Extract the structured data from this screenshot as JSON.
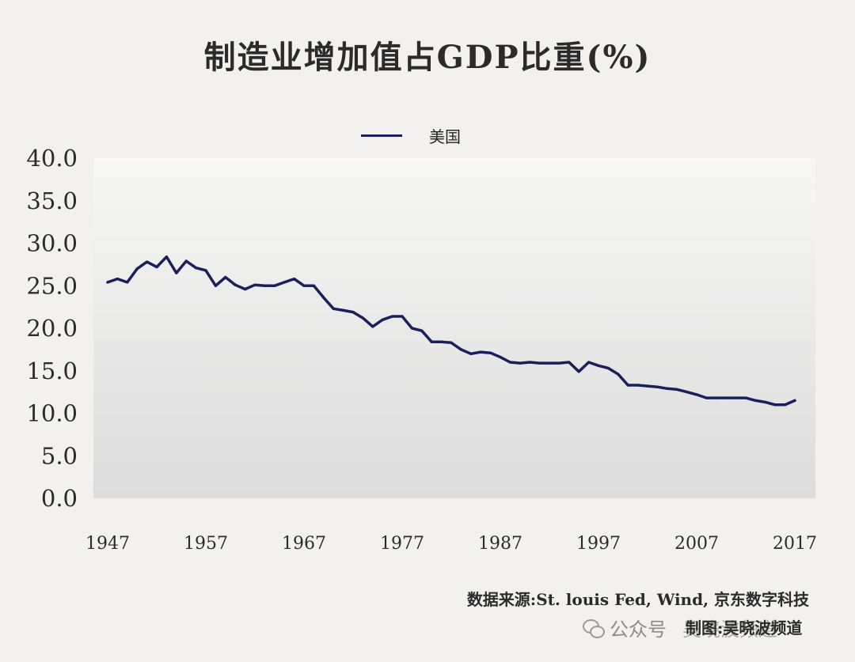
{
  "title": "制造业增加值占GDP比重(%)",
  "source": "数据来源:St. louis Fed, Wind, 京东数字科技",
  "credit": "制图:吴晓波频道",
  "watermark": {
    "platform": "公众号",
    "account": "吴晓波频道"
  },
  "colors": {
    "series": "#1b1f5c",
    "plot_bg_top": "#f7f7f6",
    "plot_bg_bottom": "#dedede"
  },
  "chart_data": {
    "type": "line",
    "title": "制造业增加值占GDP比重(%)",
    "xlabel": "",
    "ylabel": "",
    "x_tick_labels": [
      "1947",
      "1957",
      "1967",
      "1977",
      "1987",
      "1997",
      "2007",
      "2017"
    ],
    "y_tick_labels": [
      "0.0",
      "5.0",
      "10.0",
      "15.0",
      "20.0",
      "25.0",
      "30.0",
      "35.0",
      "40.0"
    ],
    "ylim": [
      0,
      40
    ],
    "xlim": [
      1946,
      2019
    ],
    "grid": false,
    "legend_position": "top-center",
    "series": [
      {
        "name": "美国",
        "x": [
          1947,
          1948,
          1949,
          1950,
          1951,
          1952,
          1953,
          1954,
          1955,
          1956,
          1957,
          1958,
          1959,
          1960,
          1961,
          1962,
          1963,
          1964,
          1965,
          1966,
          1967,
          1968,
          1969,
          1970,
          1971,
          1972,
          1973,
          1974,
          1975,
          1976,
          1977,
          1978,
          1979,
          1980,
          1981,
          1982,
          1983,
          1984,
          1985,
          1986,
          1987,
          1988,
          1989,
          1990,
          1991,
          1992,
          1993,
          1994,
          1995,
          1996,
          1997,
          1998,
          1999,
          2000,
          2001,
          2002,
          2003,
          2004,
          2005,
          2006,
          2007,
          2008,
          2009,
          2010,
          2011,
          2012,
          2013,
          2014,
          2015,
          2016,
          2017
        ],
        "values": [
          25.4,
          25.8,
          25.4,
          27.0,
          27.8,
          27.2,
          28.4,
          26.5,
          27.9,
          27.1,
          26.8,
          25.0,
          26.0,
          25.1,
          24.6,
          25.1,
          25.0,
          25.0,
          25.4,
          25.8,
          25.0,
          25.0,
          23.6,
          22.3,
          22.1,
          21.9,
          21.2,
          20.2,
          21.0,
          21.4,
          21.4,
          20.0,
          19.7,
          18.4,
          18.4,
          18.3,
          17.5,
          17.0,
          17.2,
          17.1,
          16.6,
          16.0,
          15.9,
          16.0,
          15.9,
          15.9,
          15.9,
          16.0,
          14.9,
          16.0,
          15.6,
          15.3,
          14.6,
          13.3,
          13.3,
          13.2,
          13.1,
          12.9,
          12.8,
          12.5,
          12.2,
          11.8,
          11.8,
          11.8,
          11.8,
          11.8,
          11.5,
          11.3,
          11.0,
          11.0,
          11.5
        ]
      }
    ]
  }
}
